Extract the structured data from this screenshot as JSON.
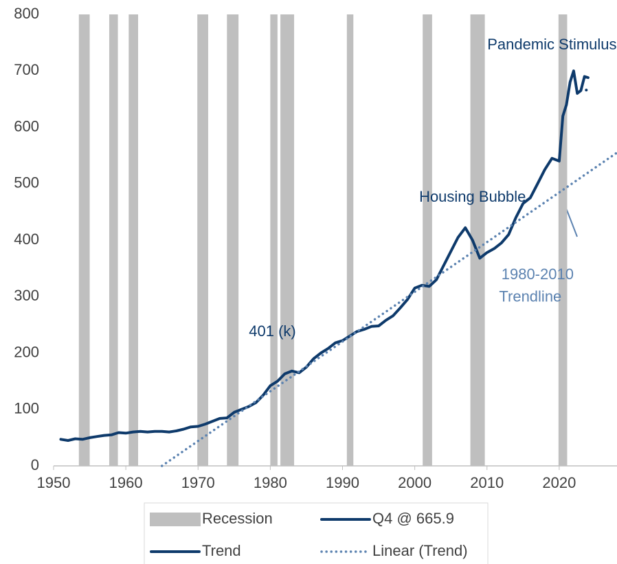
{
  "chart_data": {
    "type": "line",
    "xlim": [
      1950,
      2028
    ],
    "xticks": [
      1950,
      1960,
      1970,
      1980,
      1990,
      2000,
      2010,
      2020
    ],
    "ylim": [
      0,
      800
    ],
    "yticks": [
      0,
      100,
      200,
      300,
      400,
      500,
      600,
      700,
      800
    ],
    "recessions": {
      "name": "Recession",
      "color": "#bfbfbf",
      "starts": [
        1953.5,
        1957.7,
        1960.4,
        1969.9,
        1974.0,
        1980.0,
        1981.4,
        1990.6,
        2001.1,
        2007.7,
        2019.9
      ],
      "ends": [
        1955.0,
        1958.9,
        1961.7,
        1971.4,
        1975.6,
        1981.0,
        1983.3,
        1991.5,
        2002.4,
        2009.7,
        2021.1
      ]
    },
    "series": [
      {
        "name": "Q4 @ 665.9",
        "color": "#0e3a6b",
        "style": "point",
        "x": [
          2023.75
        ],
        "values": [
          665.9
        ]
      },
      {
        "name": "Trend",
        "color": "#0e3a6b",
        "style": "solid",
        "x": [
          1951,
          1952,
          1953,
          1954,
          1955,
          1956,
          1957,
          1958,
          1959,
          1960,
          1961,
          1962,
          1963,
          1964,
          1965,
          1966,
          1967,
          1968,
          1969,
          1970,
          1971,
          1972,
          1973,
          1974,
          1975,
          1976,
          1977,
          1978,
          1979,
          1980,
          1981,
          1982,
          1983,
          1984,
          1985,
          1986,
          1987,
          1988,
          1989,
          1990,
          1991,
          1992,
          1993,
          1994,
          1995,
          1996,
          1997,
          1998,
          1999,
          2000,
          2001,
          2002,
          2003,
          2004,
          2005,
          2006,
          2007,
          2008,
          2009,
          2010,
          2011,
          2012,
          2013,
          2014,
          2015,
          2016,
          2017,
          2018,
          2019,
          2020,
          2020.5,
          2021,
          2021.5,
          2022,
          2022.5,
          2023,
          2023.5,
          2024
        ],
        "values": [
          47,
          45,
          48,
          47,
          50,
          52,
          54,
          55,
          59,
          58,
          60,
          61,
          60,
          61,
          61,
          60,
          62,
          65,
          69,
          70,
          74,
          79,
          84,
          85,
          95,
          100,
          105,
          112,
          125,
          142,
          150,
          163,
          168,
          165,
          175,
          190,
          200,
          208,
          218,
          222,
          230,
          238,
          242,
          247,
          248,
          258,
          266,
          280,
          295,
          315,
          320,
          318,
          330,
          355,
          380,
          405,
          422,
          400,
          368,
          378,
          385,
          395,
          410,
          440,
          465,
          475,
          500,
          525,
          545,
          540,
          620,
          640,
          680,
          700,
          660,
          665,
          690,
          688
        ]
      },
      {
        "name": "Linear (Trend)",
        "color": "#5b82b0",
        "style": "dotted",
        "x": [
          1965,
          2028
        ],
        "values": [
          0,
          555
        ]
      }
    ],
    "annotations": [
      {
        "text": "Pandemic Stimulus",
        "x": 2019.0,
        "y": 745
      },
      {
        "text": "Housing Bubble",
        "x": 2008.0,
        "y": 475
      },
      {
        "text": "401 (k)",
        "x": 1980.3,
        "y": 237
      },
      {
        "text": "1980-2010",
        "x": 2017.0,
        "y": 338,
        "color": "#5b82b0"
      },
      {
        "text": "Trendline",
        "x": 2016.0,
        "y": 298,
        "color": "#5b82b0"
      }
    ]
  }
}
